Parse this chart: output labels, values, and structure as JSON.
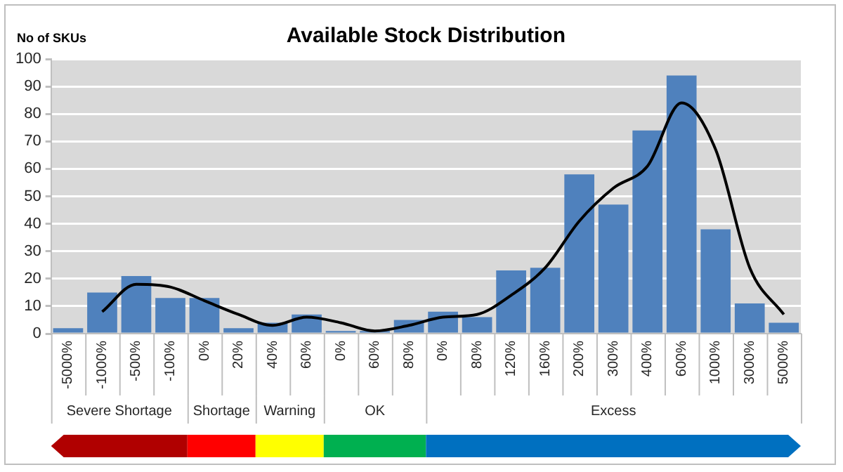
{
  "chart_data": {
    "type": "bar",
    "title": "Available Stock Distribution",
    "ylabel": "No of SKUs",
    "categories": [
      "-5000%",
      "-1000%",
      "-500%",
      "-100%",
      "0%",
      "20%",
      "40%",
      "60%",
      "0%",
      "60%",
      "80%",
      "0%",
      "80%",
      "120%",
      "160%",
      "200%",
      "300%",
      "400%",
      "600%",
      "1000%",
      "3000%",
      "5000%"
    ],
    "series": [
      {
        "color": "#4f81bd",
        "values": [
          2,
          15,
          21,
          13,
          13,
          2,
          4,
          7,
          1,
          1,
          5,
          8,
          6,
          23,
          24,
          58,
          47,
          74,
          94,
          38,
          11,
          4
        ]
      },
      {
        "type": "line",
        "color": "#000000",
        "values": [
          null,
          8,
          18,
          17,
          12,
          7,
          3,
          6,
          4,
          1,
          3,
          6,
          7,
          14,
          24,
          41,
          53,
          61,
          84,
          67,
          24,
          7
        ]
      }
    ],
    "ylim": [
      0,
      100
    ],
    "yticks": [
      0,
      10,
      20,
      30,
      40,
      50,
      60,
      70,
      80,
      90,
      100
    ],
    "grid": "y",
    "legend": false,
    "marker": "none",
    "line_style": "solid",
    "annotations": [
      "Severe Shortage",
      "Shortage",
      "Warning",
      "OK",
      "Excess"
    ]
  }
}
